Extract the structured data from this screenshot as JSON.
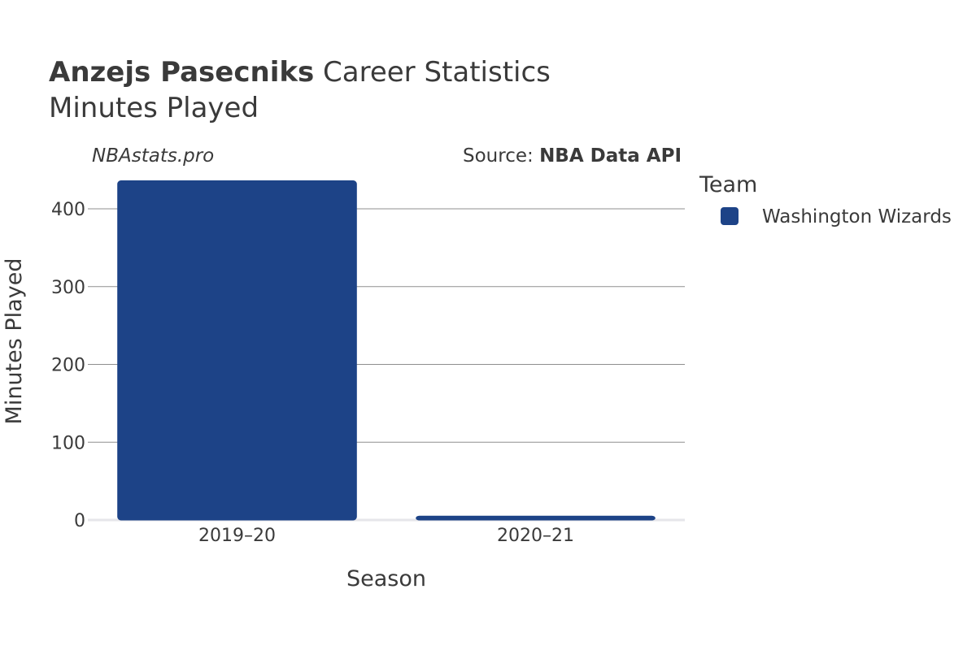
{
  "header": {
    "player_name": "Anzejs Pasecniks",
    "title_rest": " Career Statistics",
    "subtitle": "Minutes Played"
  },
  "watermark": "NBAstats.pro",
  "source": {
    "prefix": "Source: ",
    "name": "NBA Data API"
  },
  "legend": {
    "title": "Team",
    "placement": "right"
  },
  "colors": {
    "bar": "#1d4387",
    "grid": "#8f8f8f",
    "zero_line": "#e6e6ea",
    "text": "#3a3a3a"
  },
  "chart_data": {
    "type": "bar",
    "title": "Anzejs Pasecniks Career Statistics",
    "subtitle": "Minutes Played",
    "xlabel": "Season",
    "ylabel": "Minutes Played",
    "categories": [
      "2019–20",
      "2020–21"
    ],
    "series": [
      {
        "name": "Washington Wizards",
        "values": [
          436,
          5
        ],
        "color": "#1d4387"
      }
    ],
    "ylim": [
      0,
      440
    ],
    "yticks": [
      0,
      100,
      200,
      300,
      400
    ],
    "grid": true,
    "legend_position": "top-right"
  }
}
